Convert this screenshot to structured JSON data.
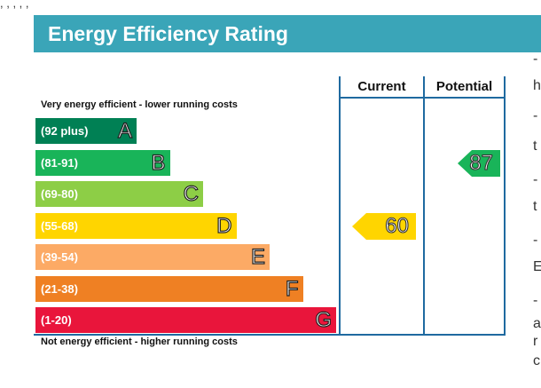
{
  "top_text": ", , , , ,",
  "title": "Energy Efficiency Rating",
  "columns": {
    "current": "Current",
    "potential": "Potential"
  },
  "captions": {
    "top": "Very energy efficient - lower running costs",
    "bottom": "Not energy efficient - higher running costs"
  },
  "chart_data": {
    "type": "bar",
    "title": "Energy Efficiency Rating",
    "bands": [
      {
        "range": "(92 plus)",
        "letter": "A",
        "color": "#008054"
      },
      {
        "range": "(81-91)",
        "letter": "B",
        "color": "#19b459"
      },
      {
        "range": "(69-80)",
        "letter": "C",
        "color": "#8dce46"
      },
      {
        "range": "(55-68)",
        "letter": "D",
        "color": "#ffd500"
      },
      {
        "range": "(39-54)",
        "letter": "E",
        "color": "#fcaa65"
      },
      {
        "range": "(21-38)",
        "letter": "F",
        "color": "#ef8023"
      },
      {
        "range": "(1-20)",
        "letter": "G",
        "color": "#e9153b"
      }
    ],
    "current": {
      "value": "60",
      "band": "D",
      "color": "#ffd500"
    },
    "potential": {
      "value": "87",
      "band": "B",
      "color": "#19b459"
    }
  },
  "side_letters": [
    "-",
    "h",
    "-",
    "t",
    "-",
    "t",
    "-",
    "E",
    "-",
    "a",
    "r",
    "c"
  ]
}
